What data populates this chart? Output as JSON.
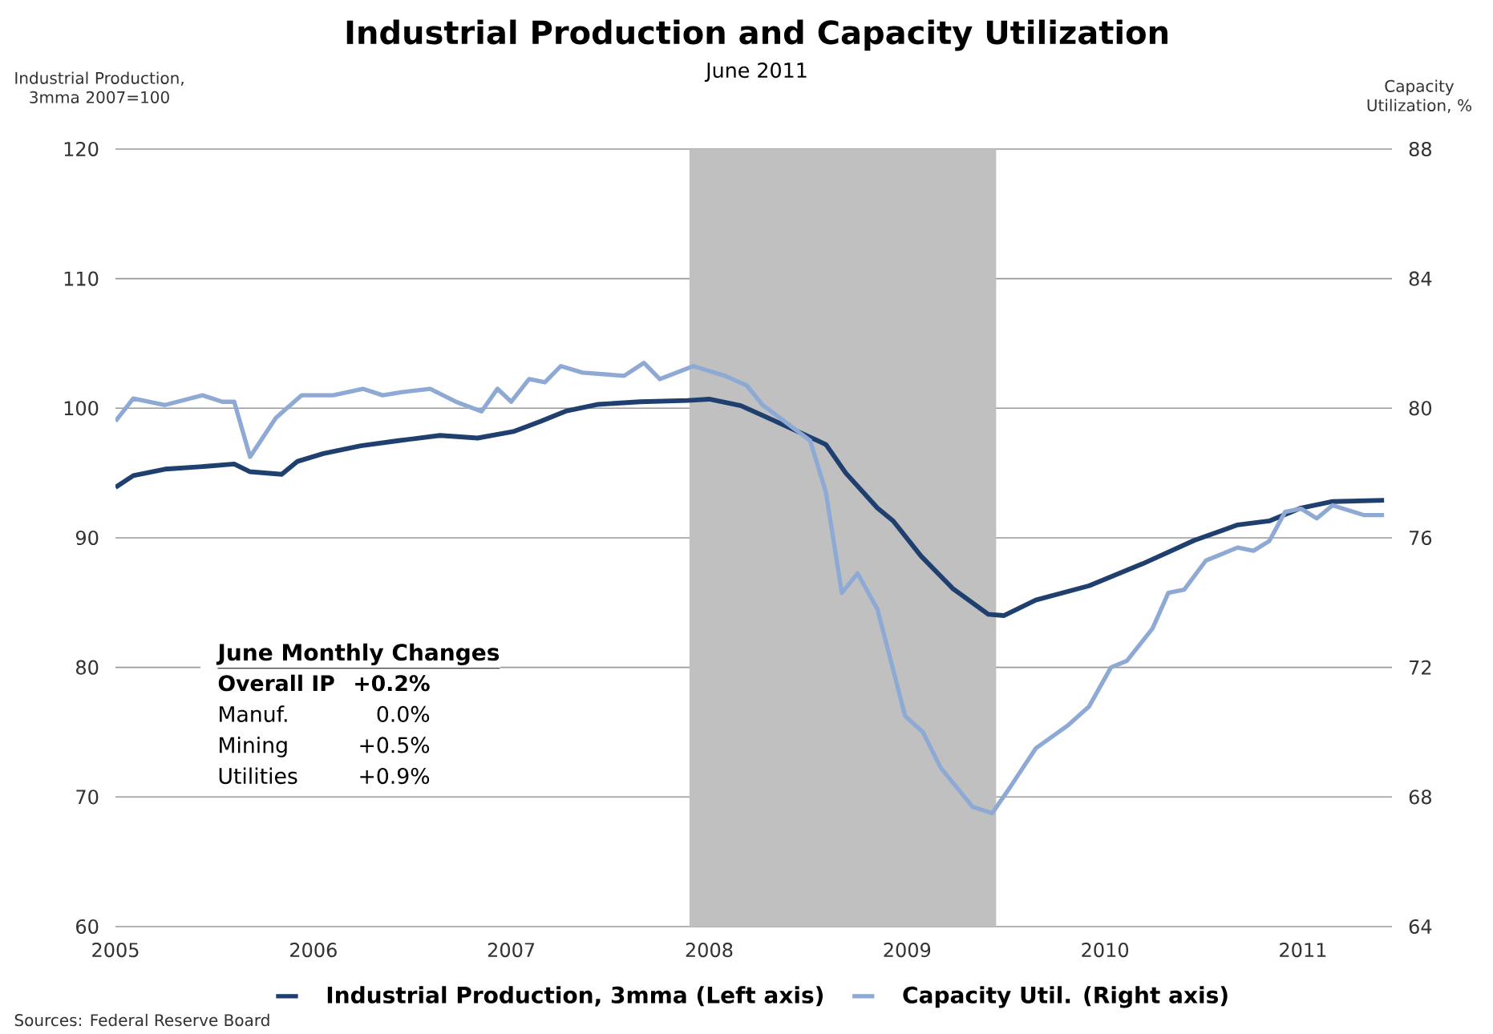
{
  "chart_data": {
    "type": "line",
    "title": "Industrial Production and Capacity Utilization",
    "subtitle": "June 2011",
    "ylabel": "Industrial Production, 3mma 2007=100",
    "y2label": "Capacity Utilization, %",
    "xlim": [
      2005,
      2011.45
    ],
    "xticks": [
      2005,
      2006,
      2007,
      2008,
      2009,
      2010,
      2011
    ],
    "ylim": [
      60,
      120
    ],
    "yticks": [
      60,
      70,
      80,
      90,
      100,
      110,
      120
    ],
    "y2lim": [
      64,
      88
    ],
    "y2ticks": [
      64,
      68,
      72,
      76,
      80,
      84,
      88
    ],
    "grid": "y",
    "legend": "bottom",
    "bands": [
      {
        "axis": "x",
        "from": 2007.9,
        "to": 2009.45,
        "color": "#c0c0c0"
      }
    ],
    "series": [
      {
        "name": "Industrial Production, 3mma (Left axis)",
        "color": "#1f3f6e",
        "x": [
          2005.0,
          2005.09,
          2005.25,
          2005.44,
          2005.6,
          2005.68,
          2005.84,
          2005.92,
          2006.05,
          2006.24,
          2006.43,
          2006.64,
          2006.83,
          2007.01,
          2007.15,
          2007.28,
          2007.44,
          2007.65,
          2007.89,
          2008.0,
          2008.16,
          2008.32,
          2008.59,
          2008.69,
          2008.85,
          2008.93,
          2009.07,
          2009.23,
          2009.41,
          2009.49,
          2009.65,
          2009.92,
          2010.19,
          2010.45,
          2010.67,
          2010.83,
          2010.99,
          2011.15,
          2011.41
        ],
        "values": [
          93.9,
          94.8,
          95.3,
          95.5,
          95.7,
          95.1,
          94.9,
          95.9,
          96.5,
          97.1,
          97.5,
          97.9,
          97.7,
          98.2,
          99.0,
          99.8,
          100.3,
          100.5,
          100.6,
          100.7,
          100.2,
          99.1,
          97.2,
          95.0,
          92.3,
          91.3,
          88.6,
          86.1,
          84.1,
          84.0,
          85.2,
          86.3,
          88.0,
          89.8,
          91.0,
          91.3,
          92.3,
          92.8,
          92.9
        ]
      },
      {
        "name": "Capacity Util. (Right axis)",
        "color": "#8eaad4",
        "axis": "y2",
        "x": [
          2005.0,
          2005.09,
          2005.25,
          2005.44,
          2005.54,
          2005.6,
          2005.68,
          2005.81,
          2005.94,
          2006.1,
          2006.25,
          2006.35,
          2006.45,
          2006.59,
          2006.72,
          2006.85,
          2006.93,
          2007.0,
          2007.09,
          2007.17,
          2007.25,
          2007.36,
          2007.57,
          2007.67,
          2007.75,
          2007.92,
          2008.08,
          2008.19,
          2008.27,
          2008.51,
          2008.59,
          2008.67,
          2008.75,
          2008.85,
          2008.99,
          2009.08,
          2009.17,
          2009.33,
          2009.43,
          2009.52,
          2009.65,
          2009.81,
          2009.92,
          2010.03,
          2010.11,
          2010.24,
          2010.32,
          2010.4,
          2010.51,
          2010.67,
          2010.75,
          2010.83,
          2010.91,
          2010.99,
          2011.07,
          2011.15,
          2011.31,
          2011.41
        ],
        "values": [
          79.6,
          80.3,
          80.1,
          80.4,
          80.2,
          80.2,
          78.5,
          79.7,
          80.4,
          80.4,
          80.6,
          80.4,
          80.5,
          80.6,
          80.2,
          79.9,
          80.6,
          80.2,
          80.9,
          80.8,
          81.3,
          81.1,
          81.0,
          81.4,
          80.9,
          81.3,
          81.0,
          80.7,
          80.1,
          79.0,
          77.4,
          74.3,
          74.9,
          73.8,
          70.5,
          70.0,
          68.9,
          67.7,
          67.5,
          68.3,
          69.5,
          70.2,
          70.8,
          72.0,
          72.2,
          73.2,
          74.3,
          74.4,
          75.3,
          75.7,
          75.6,
          75.9,
          76.8,
          76.9,
          76.6,
          77.0,
          76.7,
          76.7
        ]
      }
    ],
    "annotations": [
      "June Monthly Changes",
      "Overall IP",
      "+0.2%",
      "Manuf.",
      "0.0%",
      "Mining",
      "+0.5%",
      "Utilities",
      "+0.9%",
      "Sources: Federal Reserve Board"
    ]
  }
}
